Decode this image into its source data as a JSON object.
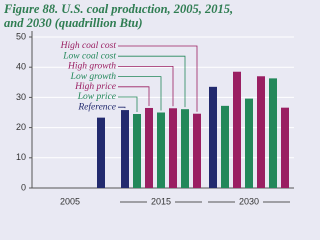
{
  "chart_data": {
    "type": "bar",
    "title": "Figure 88. U.S. coal production, 2005, 2015,",
    "subtitle": "and 2030 (quadrillion Btu)",
    "categories": [
      "2005",
      "2015",
      "2030"
    ],
    "series": [
      {
        "name": "Reference",
        "color": "#222a6e",
        "values": [
          23.3,
          25.8,
          33.5
        ]
      },
      {
        "name": "Low price",
        "color": "#23885a",
        "values": [
          null,
          24.5,
          27.2
        ]
      },
      {
        "name": "High price",
        "color": "#9a1f62",
        "values": [
          null,
          26.5,
          38.5
        ]
      },
      {
        "name": "Low growth",
        "color": "#23885a",
        "values": [
          null,
          25.0,
          29.6
        ]
      },
      {
        "name": "High growth",
        "color": "#9a1f62",
        "values": [
          null,
          26.4,
          37.0
        ]
      },
      {
        "name": "Low coal cost",
        "color": "#23885a",
        "values": [
          null,
          26.1,
          36.3
        ]
      },
      {
        "name": "High coal cost",
        "color": "#9a1f62",
        "values": [
          null,
          24.6,
          26.6
        ]
      }
    ],
    "ylim": [
      0,
      52
    ],
    "yticks": [
      0,
      10,
      20,
      30,
      40,
      50
    ],
    "grid": true
  }
}
